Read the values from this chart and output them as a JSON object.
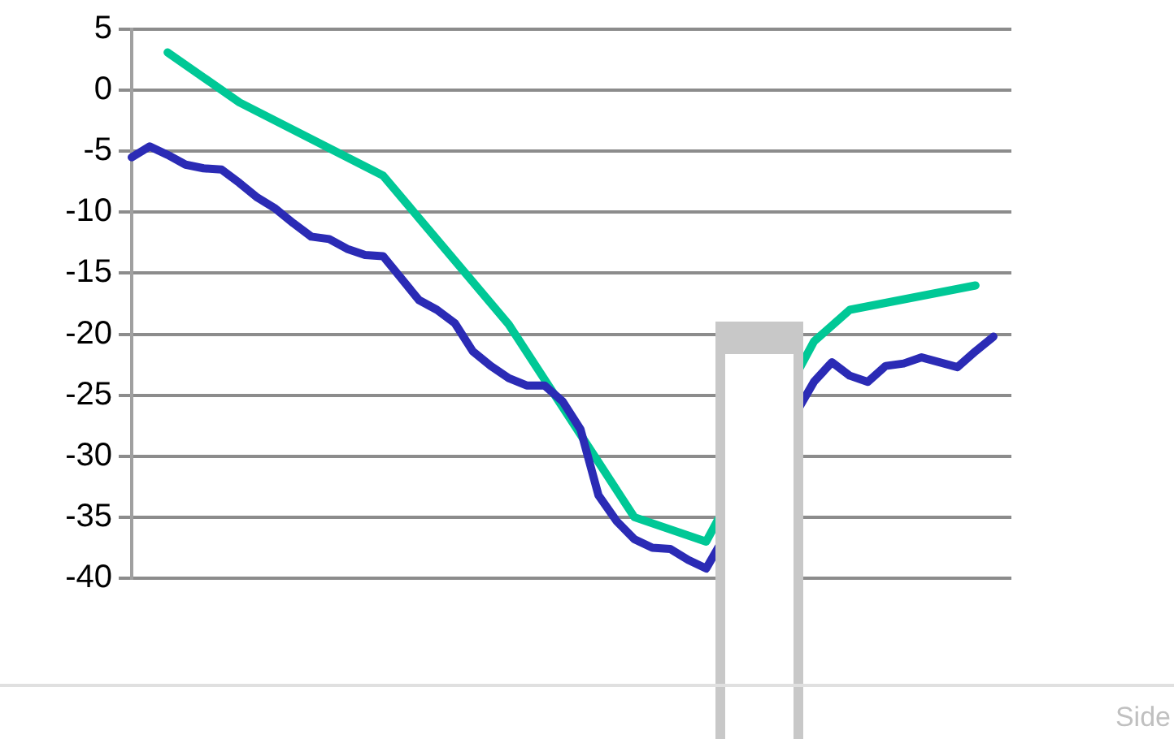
{
  "chart_data": {
    "type": "line",
    "categories": [
      null,
      null,
      null,
      null,
      null,
      null,
      null,
      null,
      null,
      null,
      null,
      null,
      null,
      null,
      null,
      null,
      null,
      null,
      null,
      null,
      null,
      null,
      null,
      null,
      null,
      null,
      null,
      null,
      null,
      null,
      null,
      null,
      null,
      null,
      null,
      null,
      null,
      null,
      null,
      null,
      null,
      null,
      null,
      null,
      null,
      null,
      null,
      null,
      null,
      null
    ],
    "series": [
      {
        "color": "#2b2bb5",
        "values": [
          -5.5,
          -4.6,
          -5.3,
          -6.1,
          -6.4,
          -6.5,
          -7.6,
          -8.8,
          -9.7,
          -10.9,
          -12.0,
          -12.2,
          -13.0,
          -13.5,
          -13.6,
          -15.4,
          -17.2,
          -18.0,
          -19.1,
          -21.4,
          -22.6,
          -23.6,
          -24.2,
          -24.2,
          -25.5,
          -27.8,
          -33.2,
          -35.3,
          -36.8,
          -37.5,
          -37.6,
          -38.5,
          -39.2,
          null,
          null,
          null,
          null,
          null,
          -23.9,
          -22.3,
          -23.4,
          -23.9,
          -22.6,
          -22.4,
          -21.9,
          -22.3,
          -22.7,
          -21.4,
          -20.2,
          null
        ]
      },
      {
        "color": "#00c896",
        "values": [
          null,
          null,
          3.1,
          null,
          null,
          null,
          -1.0,
          null,
          null,
          null,
          null,
          null,
          null,
          null,
          -7.0,
          null,
          null,
          null,
          null,
          null,
          null,
          -19.2,
          null,
          null,
          null,
          null,
          null,
          null,
          -35.0,
          null,
          null,
          null,
          -37.0,
          null,
          null,
          null,
          null,
          null,
          -20.6,
          null,
          -18.0,
          null,
          null,
          null,
          null,
          null,
          null,
          -16.0,
          null,
          null
        ]
      }
    ],
    "ylim": [
      -40,
      5
    ],
    "yticks": [
      -40,
      -35,
      -30,
      -25,
      -20,
      -15,
      -10,
      -5,
      0,
      5
    ],
    "grid": "y",
    "legend": false,
    "tick_labels": "y",
    "marker": "none",
    "line_style": "solid",
    "annotations": [
      "Side"
    ]
  }
}
